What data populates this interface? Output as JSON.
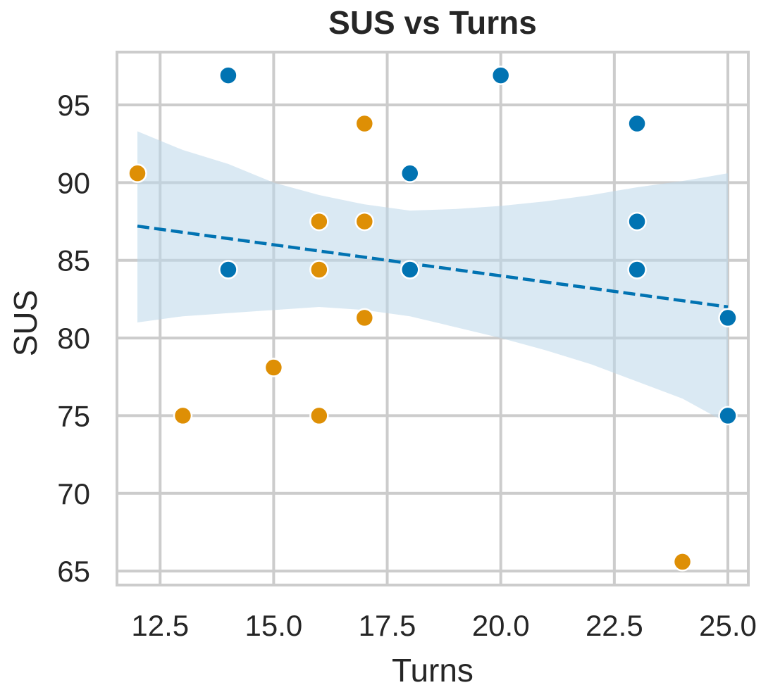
{
  "chart_data": {
    "type": "scatter",
    "title": "SUS vs Turns",
    "xlabel": "Turns",
    "ylabel": "SUS",
    "xlim": [
      11.55,
      25.45
    ],
    "ylim": [
      64.1,
      98.4
    ],
    "xticks": [
      "12.5",
      "15.0",
      "17.5",
      "20.0",
      "22.5",
      "25.0"
    ],
    "yticks": [
      "65",
      "70",
      "75",
      "80",
      "85",
      "90",
      "95"
    ],
    "grid": true,
    "legend": "none",
    "series": [
      {
        "color": "#0173b2",
        "points": [
          {
            "x": 14,
            "y": 96.9
          },
          {
            "x": 20,
            "y": 96.9
          },
          {
            "x": 23,
            "y": 93.8
          },
          {
            "x": 18,
            "y": 90.6
          },
          {
            "x": 23,
            "y": 87.5
          },
          {
            "x": 14,
            "y": 84.4
          },
          {
            "x": 18,
            "y": 84.4
          },
          {
            "x": 23,
            "y": 84.4
          },
          {
            "x": 25,
            "y": 81.3
          },
          {
            "x": 25,
            "y": 75.0
          }
        ]
      },
      {
        "color": "#de8f05",
        "points": [
          {
            "x": 17,
            "y": 93.8
          },
          {
            "x": 12,
            "y": 90.6
          },
          {
            "x": 16,
            "y": 87.5
          },
          {
            "x": 17,
            "y": 87.5
          },
          {
            "x": 16,
            "y": 84.4
          },
          {
            "x": 17,
            "y": 81.3
          },
          {
            "x": 15,
            "y": 78.1
          },
          {
            "x": 13,
            "y": 75.0
          },
          {
            "x": 16,
            "y": 75.0
          },
          {
            "x": 24,
            "y": 65.6
          }
        ]
      }
    ],
    "regression": {
      "color": "#0173b2",
      "style": "dashed",
      "x": [
        12,
        25
      ],
      "y": [
        87.2,
        82.0
      ]
    },
    "confidence_band": {
      "color": "#bcd7ea",
      "opacity": 0.55,
      "x": [
        12,
        13,
        14,
        15,
        16,
        17,
        18,
        19,
        20,
        21,
        22,
        23,
        24,
        25
      ],
      "upper": [
        93.3,
        92.1,
        91.2,
        90.0,
        89.2,
        88.6,
        88.2,
        88.3,
        88.5,
        88.8,
        89.2,
        89.7,
        90.1,
        90.6
      ],
      "lower": [
        81.0,
        81.4,
        81.6,
        81.8,
        82.0,
        81.8,
        81.4,
        80.7,
        80.0,
        79.2,
        78.3,
        77.2,
        76.1,
        74.5
      ]
    }
  }
}
